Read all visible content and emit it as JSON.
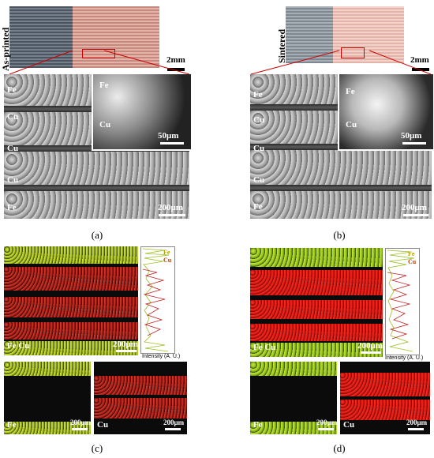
{
  "panel_a": {
    "side_label": "As-printed",
    "scale_photo": "2mm",
    "labels_left": [
      "Fe",
      "Cu",
      "Cu",
      "Cu",
      "Fe"
    ],
    "inset_labels": [
      "Fe",
      "Cu"
    ],
    "inset_scale": "50μm",
    "main_scale": "200μm",
    "caption": "(a)"
  },
  "panel_b": {
    "side_label": "Sintered",
    "scale_photo": "2mm",
    "labels_left": [
      "Fe",
      "Cu",
      "Cu",
      "Cu",
      "Fe"
    ],
    "inset_labels": [
      "Fe",
      "Cu"
    ],
    "inset_scale": "50μm",
    "main_scale": "200μm",
    "caption": "(b)"
  },
  "panel_c": {
    "map_label": "Fe Cu",
    "map_scale": "200μm",
    "legend_fe": "Fe",
    "legend_cu": "Cu",
    "axis_label": "Intensity (A. U.)",
    "fe_label": "Fe",
    "fe_scale": "200μm",
    "cu_label": "Cu",
    "cu_scale": "200μm",
    "caption": "(c)"
  },
  "panel_d": {
    "map_label": "Fe Cu",
    "map_scale": "200μm",
    "legend_fe": "Fe",
    "legend_cu": "Cu",
    "axis_label": "Intensity (A. U.)",
    "fe_label": "Fe",
    "fe_scale": "200μm",
    "cu_label": "Cu",
    "cu_scale": "200μm",
    "caption": "(d)"
  },
  "colors": {
    "fe": "#c8e03a",
    "cu": "#e0261d",
    "background": "#ffffff"
  }
}
